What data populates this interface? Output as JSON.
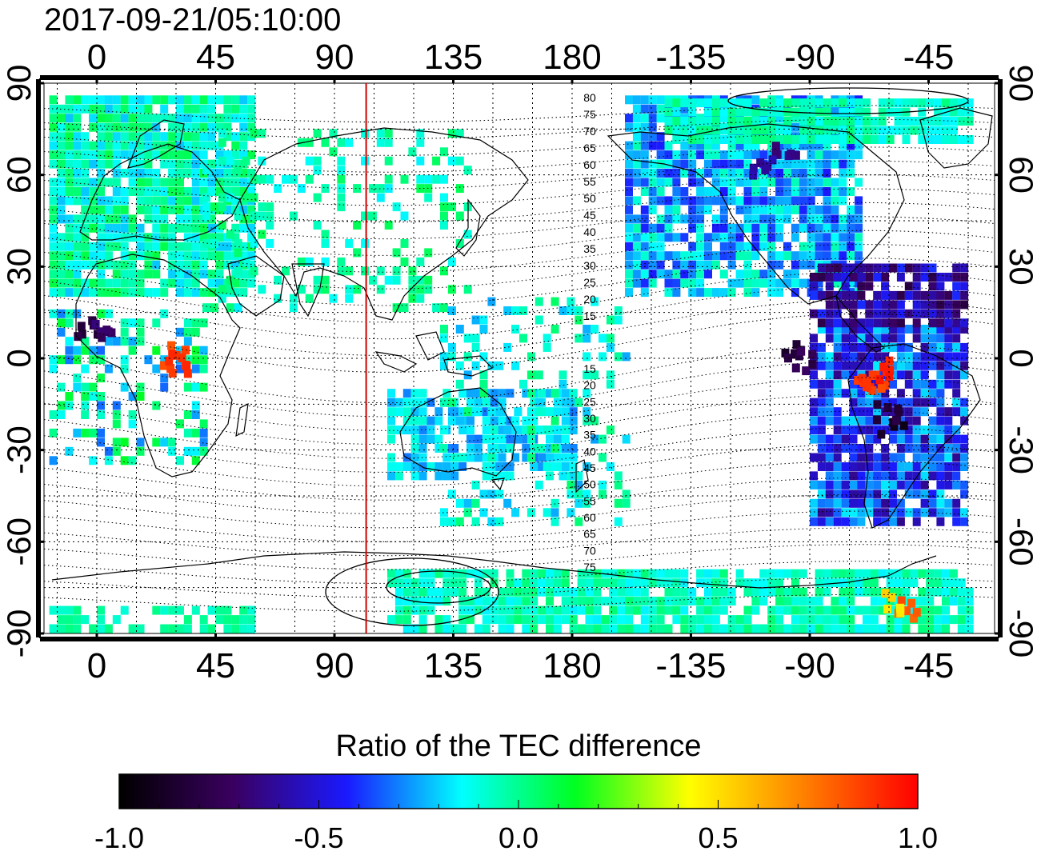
{
  "timestamp": "2017-09-21/05:10:00",
  "longitude_labels": [
    "0",
    "45",
    "90",
    "135",
    "180",
    "-135",
    "-90",
    "-45"
  ],
  "longitude_values": [
    0,
    45,
    90,
    135,
    180,
    225,
    270,
    315
  ],
  "latitude_labels_left": [
    "90",
    "60",
    "30",
    "0",
    "-30",
    "-60",
    "-90"
  ],
  "latitude_labels_right": [
    "90",
    "60",
    "30",
    "0",
    "-30",
    "-60",
    "-90"
  ],
  "latitude_values": [
    90,
    60,
    30,
    0,
    -30,
    -60,
    -90
  ],
  "magnetic_contour_labels_north": [
    "80",
    "75",
    "70",
    "65",
    "60",
    "55",
    "50",
    "45",
    "40",
    "35",
    "30",
    "25",
    "20",
    "15"
  ],
  "magnetic_contour_labels_south": [
    "15",
    "20",
    "25",
    "30",
    "35",
    "40",
    "45",
    "50",
    "55",
    "60",
    "65",
    "70",
    "75"
  ],
  "terminator_longitude": 102,
  "colorbar": {
    "title": "Ratio of the TEC difference",
    "tick_labels": [
      "-1.0",
      "-0.5",
      "0.0",
      "0.5",
      "1.0"
    ],
    "stops": [
      "#000000",
      "#3a0060",
      "#1a1aff",
      "#00ffff",
      "#00ff20",
      "#ffff00",
      "#ff8000",
      "#ff0000"
    ]
  },
  "colors": {
    "terminator": "#d00000",
    "grid": "#000000"
  }
}
